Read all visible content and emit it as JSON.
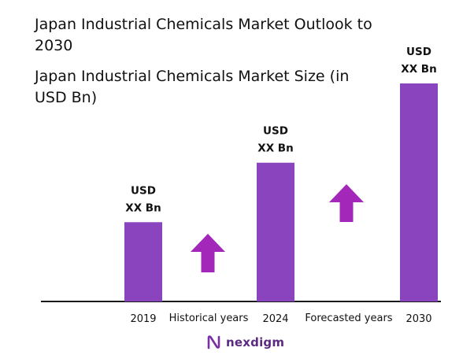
{
  "header": {
    "title": "Japan Industrial Chemicals Market Outlook to 2030",
    "subtitle": "Japan Industrial Chemicals Market Size (in USD Bn)"
  },
  "brand": {
    "name": "nexdigm",
    "logo_icon": "nexdigm-logo-icon",
    "color": "#5b2b82"
  },
  "colors": {
    "bar": "#8a45be",
    "arrow": "#a327b8",
    "baseline": "#1a1a1a"
  },
  "chart_data": {
    "type": "bar",
    "title": "Japan Industrial Chemicals Market Size (in USD Bn)",
    "categories": [
      "2019",
      "2024",
      "2030"
    ],
    "values": [
      1.0,
      1.75,
      2.75
    ],
    "value_labels": [
      [
        "USD",
        "XX Bn"
      ],
      [
        "USD",
        "XX Bn"
      ],
      [
        "USD",
        "XX Bn"
      ]
    ],
    "period_labels": [
      "Historical years",
      "Forecasted years"
    ],
    "arrows": [
      "up-arrow-icon",
      "up-arrow-icon"
    ],
    "grid": false,
    "ylim": [
      0,
      2.75
    ]
  }
}
